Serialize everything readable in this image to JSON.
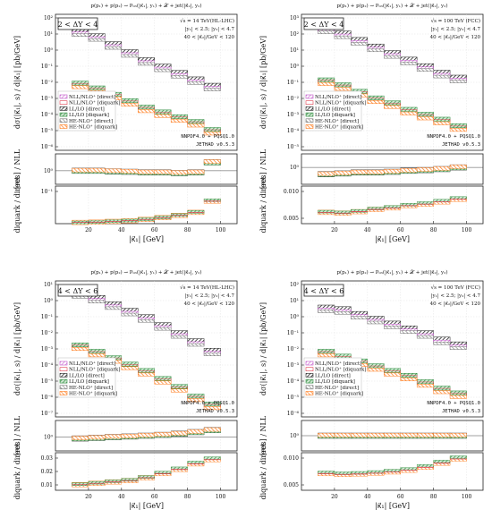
{
  "colors": {
    "nll_direct": "#c050c8",
    "nll_diquark": "#e04050",
    "ll_direct": "#202020",
    "ll_diquark": "#2e8b3e",
    "he_direct": "#707070",
    "he_diquark": "#ff7a1a"
  },
  "legend": [
    "NLL/NLO⁺ [direct]",
    "NLL/NLO⁺ [diquark]",
    "LL/LO [direct]",
    "LL/LO [diquark]",
    "HE-NLO⁺ [direct]",
    "HE-NLO⁺ [diquark]"
  ],
  "xlabel": "|κ⃗₁| [GeV]",
  "ylabel_main": "dσ(|κ⃗₁|, s) / d|κ⃗₁|  [pb/GeV]",
  "ylabel_ratio1": "[res] / NLL",
  "ylabel_ratio2": "diquark / direct",
  "pdf_label": "NNPDF4.0 + PQSQ1.0",
  "code_label": "JETHAD v0.5.3",
  "chart_data": [
    {
      "type": "bar",
      "title": "p(p₁) + p(p₂) → P₀₃(|κ⃗₁|, y₁) + 𝒳 + jet(|κ⃗₂|, y₂)",
      "rapidity_bin": "2 < ΔY < 4",
      "energy": "√s = 14 TeV(HL-LHC)",
      "cuts": [
        "|y₁| < 2.5;  |y₂| < 4.7",
        "40 < |κ⃗₂|/GeV < 120"
      ],
      "x_ticks": [
        20,
        40,
        60,
        80,
        100
      ],
      "x_edges": [
        10,
        20,
        30,
        40,
        50,
        60,
        70,
        80,
        90,
        100
      ],
      "main_yticks": [
        "10²",
        "10¹",
        "10⁰",
        "10⁻¹",
        "10⁻²",
        "10⁻³",
        "10⁻⁴",
        "10⁻⁵",
        "10⁻⁶"
      ],
      "main_ylog": [
        -6,
        2.5
      ],
      "series_log": [
        {
          "name": "direct",
          "values": [
            1.3,
            1.0,
            0.5,
            0.0,
            -0.5,
            -0.9,
            -1.3,
            -1.7,
            -2.1
          ]
        },
        {
          "name": "diquark",
          "values": [
            -1.9,
            -2.2,
            -2.6,
            -3.0,
            -3.4,
            -3.7,
            -4.0,
            -4.3,
            -4.8
          ]
        }
      ],
      "ratio1_yticks": [
        "10⁰"
      ],
      "ratio1_values": [
        1.0,
        1.0,
        0.98,
        0.97,
        0.95,
        0.95,
        0.93,
        0.95,
        1.25
      ],
      "ratio1_range": [
        0.6,
        1.5
      ],
      "ratio2_yticks": [
        "10⁻¹"
      ],
      "ratio2_values": [
        0.005,
        0.006,
        0.009,
        0.012,
        0.017,
        0.024,
        0.033,
        0.045,
        0.09
      ],
      "ratio2_range": [
        0,
        0.15
      ]
    },
    {
      "type": "bar",
      "title": "p(p₁) + p(p₂) → P₀₃(|κ⃗₁|, y₁) + 𝒳 + jet(|κ⃗₂|, y₂)",
      "rapidity_bin": "2 < ΔY < 4",
      "energy": "√s = 100 TeV (FCC)",
      "cuts": [
        "|y₁| < 2.5;  |y₂| < 4.7",
        "40 < |κ⃗₂|/GeV < 120"
      ],
      "x_ticks": [
        20,
        40,
        60,
        80,
        100
      ],
      "x_edges": [
        10,
        20,
        30,
        40,
        50,
        60,
        70,
        80,
        90,
        100
      ],
      "main_yticks": [
        "10³",
        "10²",
        "10¹",
        "10⁰",
        "10⁻¹",
        "10⁻²",
        "10⁻³",
        "10⁻⁴",
        "10⁻⁵"
      ],
      "main_ylog": [
        -5,
        3.3
      ],
      "series_log": [
        {
          "name": "direct",
          "values": [
            2.3,
            2.0,
            1.6,
            1.2,
            0.8,
            0.4,
            0.0,
            -0.4,
            -0.7
          ]
        },
        {
          "name": "diquark",
          "values": [
            -0.8,
            -1.1,
            -1.5,
            -1.9,
            -2.2,
            -2.6,
            -2.9,
            -3.2,
            -3.6
          ]
        }
      ],
      "ratio1_yticks": [
        "10⁰"
      ],
      "ratio1_values": [
        0.8,
        0.82,
        0.85,
        0.85,
        0.87,
        0.9,
        0.92,
        0.95,
        1.0
      ],
      "ratio1_range": [
        0.5,
        1.4
      ],
      "ratio2_yticks": [
        "0.010",
        "0.005"
      ],
      "ratio2_values": [
        0.005,
        0.0048,
        0.0052,
        0.0058,
        0.0062,
        0.0068,
        0.0072,
        0.0078,
        0.0085
      ],
      "ratio2_range": [
        0.002,
        0.012
      ]
    },
    {
      "type": "bar",
      "title": "p(p₁) + p(p₂) → P₀₃(|κ⃗₁|, y₁) + 𝒳 + jet(|κ⃗₂|, y₂)",
      "rapidity_bin": "4 < ΔY < 6",
      "energy": "√s = 14 TeV(HL-LHC)",
      "cuts": [
        "|y₁| < 2.5;  |y₂| < 4.7",
        "40 < |κ⃗₂|/GeV < 120"
      ],
      "x_ticks": [
        20,
        40,
        60,
        80,
        100
      ],
      "x_edges": [
        10,
        20,
        30,
        40,
        50,
        60,
        70,
        80,
        90,
        100
      ],
      "main_yticks": [
        "10¹",
        "10⁰",
        "10⁻¹",
        "10⁻²",
        "10⁻³",
        "10⁻⁴",
        "10⁻⁵",
        "10⁻⁶",
        "10⁻⁷"
      ],
      "main_ylog": [
        -7,
        1.5
      ],
      "series_log": [
        {
          "name": "direct",
          "values": [
            0.6,
            0.3,
            -0.1,
            -0.5,
            -0.9,
            -1.4,
            -1.9,
            -2.4,
            -3.0
          ]
        },
        {
          "name": "diquark",
          "values": [
            -2.6,
            -3.0,
            -3.4,
            -3.8,
            -4.2,
            -4.7,
            -5.2,
            -5.8,
            -6.3
          ]
        }
      ],
      "ratio1_yticks": [
        "10⁰"
      ],
      "ratio1_values": [
        0.95,
        0.97,
        1.0,
        1.02,
        1.05,
        1.08,
        1.12,
        1.18,
        1.25
      ],
      "ratio1_range": [
        0.5,
        1.6
      ],
      "ratio2_yticks": [
        "0.03",
        "0.02",
        "0.01"
      ],
      "ratio2_values": [
        0.009,
        0.01,
        0.011,
        0.012,
        0.014,
        0.017,
        0.02,
        0.024,
        0.027
      ],
      "ratio2_range": [
        0.005,
        0.032
      ]
    },
    {
      "type": "bar",
      "title": "p(p₁) + p(p₂) → P₀₃(|κ⃗₁|, y₁) + 𝒳 + jet(|κ⃗₂|, y₂)",
      "rapidity_bin": "4 < ΔY < 6",
      "energy": "√s = 100 TeV (FCC)",
      "cuts": [
        "|y₁| < 2.5;  |y₂| < 4.7",
        "40 < |κ⃗₂|/GeV < 120"
      ],
      "x_ticks": [
        20,
        40,
        60,
        80,
        100
      ],
      "x_edges": [
        10,
        20,
        30,
        40,
        50,
        60,
        70,
        80,
        90,
        100
      ],
      "main_yticks": [
        "10²",
        "10¹",
        "10⁰",
        "10⁻¹",
        "10⁻²",
        "10⁻³",
        "10⁻⁴",
        "10⁻⁵",
        "10⁻⁶"
      ],
      "main_ylog": [
        -6,
        2.5
      ],
      "series_log": [
        {
          "name": "direct",
          "values": [
            0.7,
            0.6,
            0.3,
            0.0,
            -0.3,
            -0.6,
            -0.9,
            -1.3,
            -1.6
          ]
        },
        {
          "name": "diquark",
          "values": [
            -2.0,
            -2.3,
            -2.6,
            -2.9,
            -3.2,
            -3.5,
            -3.9,
            -4.3,
            -4.6
          ]
        }
      ],
      "ratio1_yticks": [
        "10⁰"
      ],
      "ratio1_values": [
        1.0,
        1.0,
        1.0,
        1.0,
        1.0,
        1.0,
        1.0,
        1.0,
        1.0
      ],
      "ratio1_range": [
        0.5,
        1.5
      ],
      "ratio2_yticks": [
        "0.010",
        "0.005"
      ],
      "ratio2_values": [
        0.007,
        0.0068,
        0.0069,
        0.0071,
        0.0074,
        0.0078,
        0.0085,
        0.0095,
        0.0105
      ],
      "ratio2_range": [
        0.003,
        0.012
      ]
    }
  ]
}
